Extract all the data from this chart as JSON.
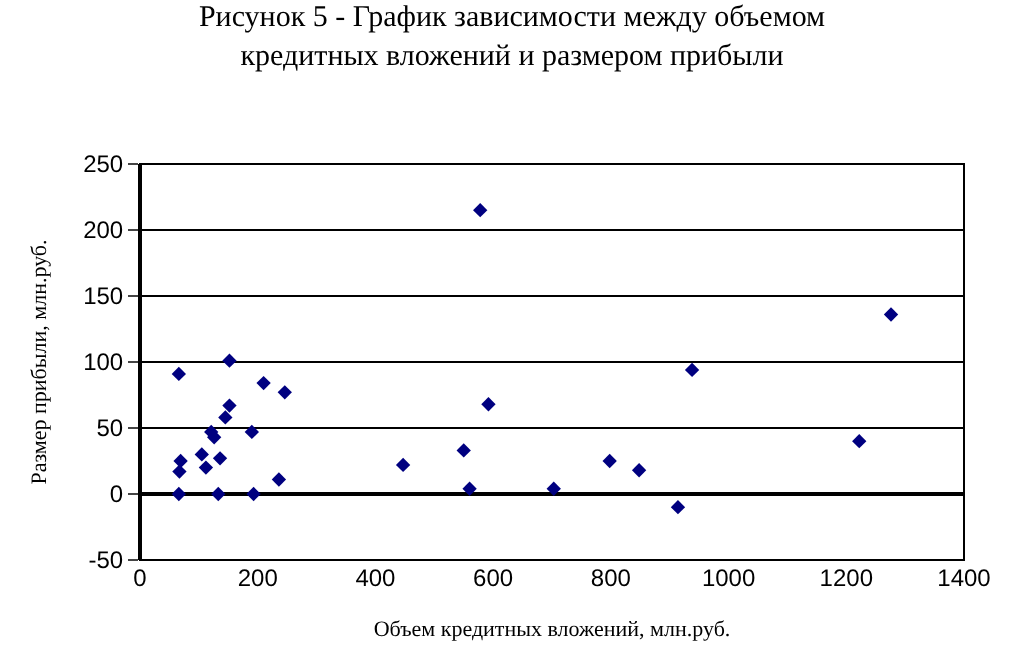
{
  "chart_data": {
    "type": "scatter",
    "title": "Рисунок 5 - График зависимости между объемом\nкредитных вложений и размером прибыли",
    "xlabel": "Объем кредитных вложений, млн.руб.",
    "ylabel": "Размер прибыли, млн.руб.",
    "x": [
      66,
      66,
      67,
      69,
      105,
      112,
      121,
      126,
      133,
      136,
      145,
      152,
      152,
      190,
      193,
      210,
      236,
      246,
      447,
      550,
      560,
      592,
      578,
      703,
      798,
      848,
      914,
      938,
      1222,
      1276
    ],
    "series": [
      {
        "color": "#000080",
        "values": [
          91,
          0,
          17,
          25,
          30,
          20,
          47,
          43,
          0,
          27,
          58,
          67,
          101,
          47,
          0,
          84,
          11,
          77,
          22,
          33,
          4,
          68,
          215,
          4,
          25,
          18,
          -10,
          94,
          40,
          136
        ]
      }
    ],
    "xlim": [
      0,
      1400
    ],
    "xticks": [
      0,
      200,
      400,
      600,
      800,
      1000,
      1200,
      1400
    ],
    "ylim": [
      -50,
      250
    ],
    "yticks": [
      -50,
      0,
      50,
      100,
      150,
      200,
      250
    ],
    "grid": "y",
    "legend": false,
    "marker": "diamond"
  }
}
